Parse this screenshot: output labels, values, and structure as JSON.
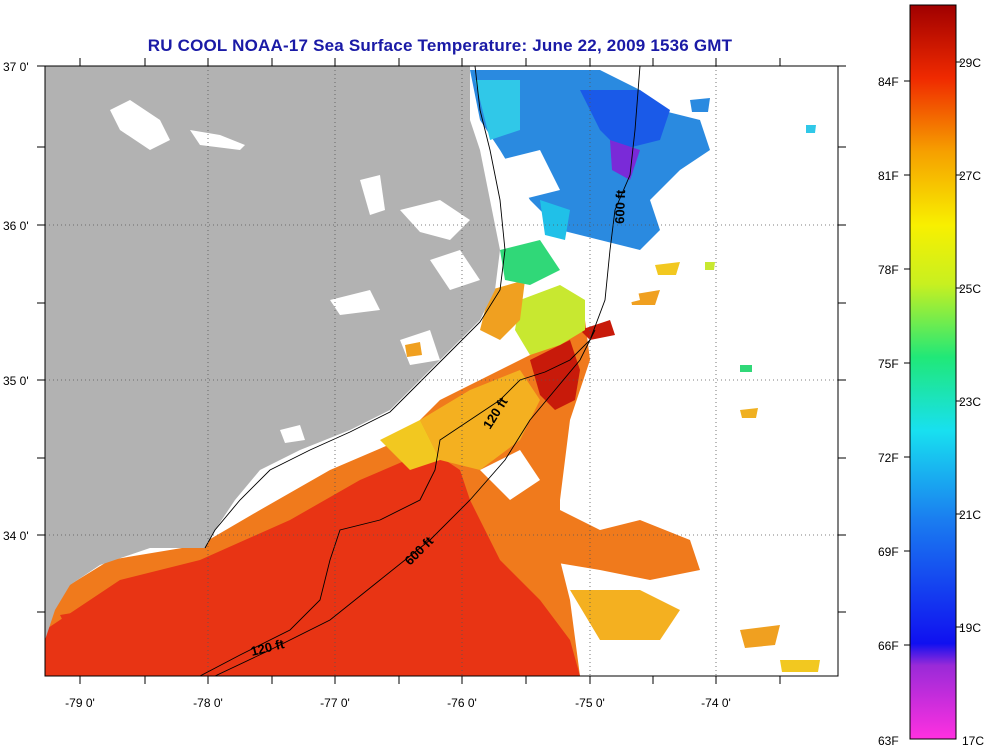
{
  "title": "RU COOL  NOAA-17  Sea Surface Temperature:  June 22, 2009 1536 GMT",
  "axes": {
    "lat_labels": [
      "37 0'",
      "36 0'",
      "35 0'",
      "34 0'"
    ],
    "lon_labels": [
      "-79 0'",
      "-78 0'",
      "-77 0'",
      "-76 0'",
      "-75 0'",
      "-74 0'"
    ]
  },
  "contours": {
    "shelf_120": "120 ft",
    "shelf_600_south": "600 ft",
    "shelf_600_north": "600 ft",
    "shelf_120_north": "120 ft"
  },
  "colorbar": {
    "fahrenheit": [
      "84F",
      "81F",
      "78F",
      "75F",
      "72F",
      "69F",
      "66F",
      "63F"
    ],
    "celsius": [
      "29C",
      "27C",
      "25C",
      "23C",
      "21C",
      "19C",
      "17C"
    ]
  },
  "colors": {
    "land": "#b2b2b2",
    "warm": "#e62a10",
    "mid": "#f0a020",
    "cool": "#2a8ae0",
    "title": "#1a1aa6"
  }
}
